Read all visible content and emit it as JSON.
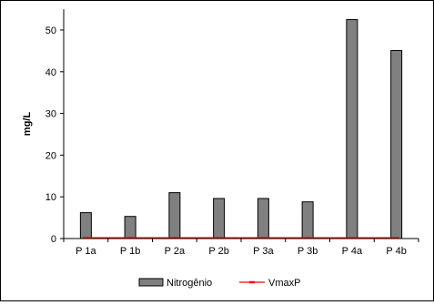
{
  "chart_data": {
    "type": "bar",
    "title": "",
    "xlabel": "",
    "ylabel": "mg/L",
    "ylim": [
      0,
      55
    ],
    "yticks": [
      0,
      10,
      20,
      30,
      40,
      50
    ],
    "grid": false,
    "legend_position": "bottom",
    "categories": [
      "P 1a",
      "P 1b",
      "P 2a",
      "P 2b",
      "P 3a",
      "P 3b",
      "P 4a",
      "P 4b"
    ],
    "series": [
      {
        "name": "Nitrogênio",
        "kind": "bar",
        "color": "#808080",
        "values": [
          6.2,
          5.3,
          11.0,
          9.6,
          9.6,
          8.8,
          52.5,
          45.1
        ]
      },
      {
        "name": "VmaxP",
        "kind": "line",
        "color": "#ff0000",
        "values": [
          0.2,
          0.2,
          0.2,
          0.2,
          0.2,
          0.2,
          0.2,
          0.2
        ]
      }
    ]
  }
}
